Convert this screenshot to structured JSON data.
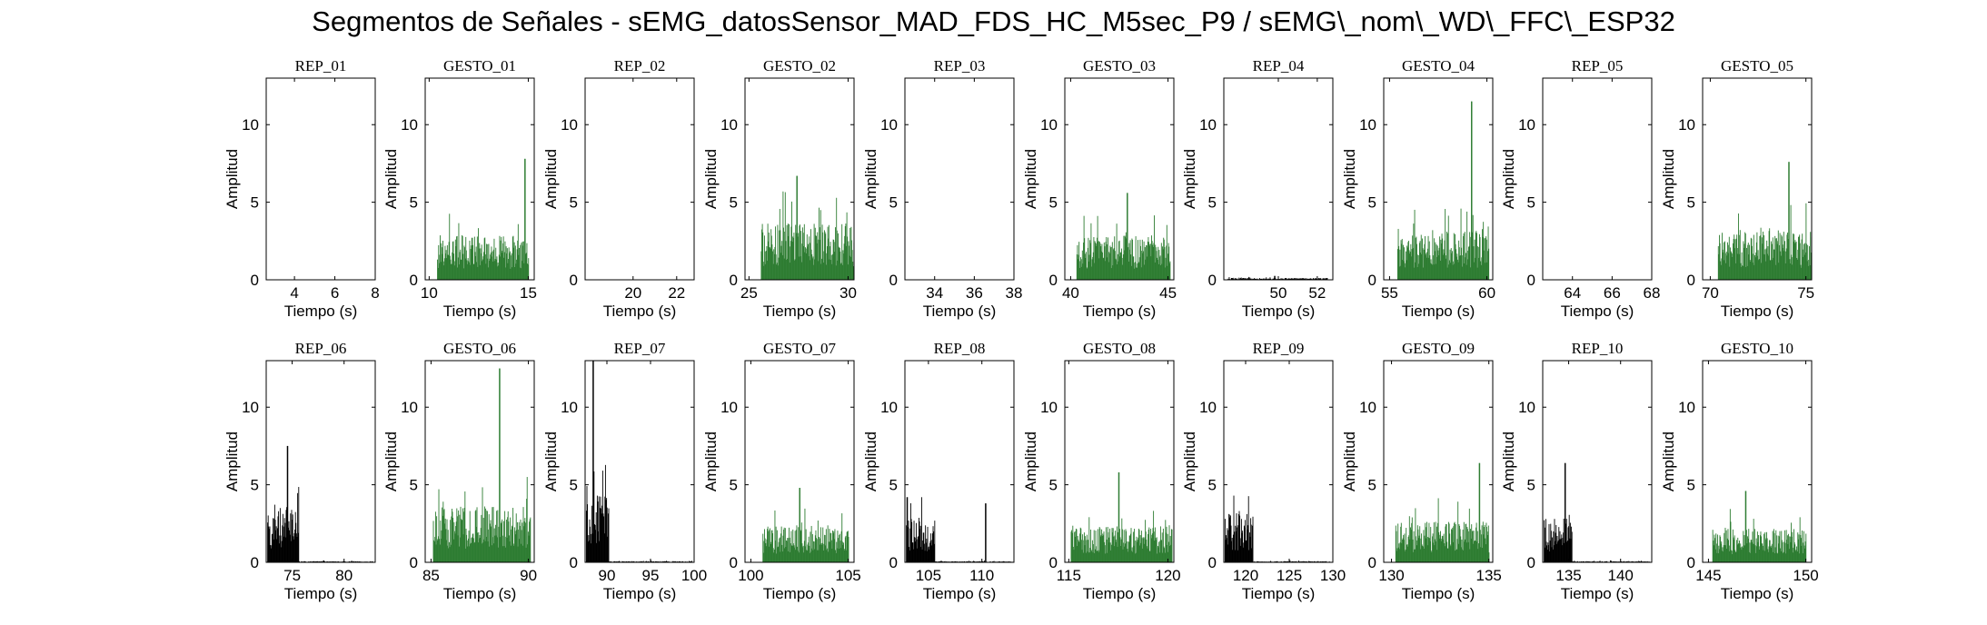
{
  "title": "Segmentos de Señales - sEMG_datosSensor_MAD_FDS_HC_M5sec_P9 / sEMG\\_nom\\_WD\\_FFC\\_ESP32",
  "colors": {
    "rep": "#000000",
    "gesto": "#2e7d32",
    "axis": "#000000"
  },
  "chart_data": [
    {
      "type": "bar",
      "title": "REP_01",
      "xlabel": "Tiempo (s)",
      "ylabel": "Amplitud",
      "xlim": [
        2.6,
        8
      ],
      "ylim": [
        0,
        13
      ],
      "xticks": [
        4,
        6,
        8
      ],
      "yticks": [
        0,
        5,
        10
      ],
      "series_kind": "rep",
      "segments": []
    },
    {
      "type": "bar",
      "title": "GESTO_01",
      "xlabel": "Tiempo (s)",
      "ylabel": "Amplitud",
      "xlim": [
        9.8,
        15.3
      ],
      "ylim": [
        0,
        13
      ],
      "xticks": [
        10,
        15
      ],
      "yticks": [
        0,
        5,
        10
      ],
      "series_kind": "gesto",
      "segments": [
        {
          "x0": 10.4,
          "x1": 15.0,
          "base": 2.0,
          "peak": 7.8,
          "peak_at": 14.8
        }
      ]
    },
    {
      "type": "bar",
      "title": "REP_02",
      "xlabel": "Tiempo (s)",
      "ylabel": "Amplitud",
      "xlim": [
        17.8,
        22.8
      ],
      "ylim": [
        0,
        13
      ],
      "xticks": [
        20,
        22
      ],
      "yticks": [
        0,
        5,
        10
      ],
      "series_kind": "rep",
      "segments": []
    },
    {
      "type": "bar",
      "title": "GESTO_02",
      "xlabel": "Tiempo (s)",
      "ylabel": "Amplitud",
      "xlim": [
        24.8,
        30.3
      ],
      "ylim": [
        0,
        13
      ],
      "xticks": [
        25,
        30
      ],
      "yticks": [
        0,
        5,
        10
      ],
      "series_kind": "gesto",
      "segments": [
        {
          "x0": 25.6,
          "x1": 30.3,
          "base": 2.5,
          "peak": 6.7,
          "peak_at": 27.4
        }
      ]
    },
    {
      "type": "bar",
      "title": "REP_03",
      "xlabel": "Tiempo (s)",
      "ylabel": "Amplitud",
      "xlim": [
        32.5,
        38
      ],
      "ylim": [
        0,
        13
      ],
      "xticks": [
        34,
        36,
        38
      ],
      "yticks": [
        0,
        5,
        10
      ],
      "series_kind": "rep",
      "segments": []
    },
    {
      "type": "bar",
      "title": "GESTO_03",
      "xlabel": "Tiempo (s)",
      "ylabel": "Amplitud",
      "xlim": [
        39.7,
        45.3
      ],
      "ylim": [
        0,
        13
      ],
      "xticks": [
        40,
        45
      ],
      "yticks": [
        0,
        5,
        10
      ],
      "series_kind": "gesto",
      "segments": [
        {
          "x0": 40.3,
          "x1": 45.1,
          "base": 2.0,
          "peak": 5.6,
          "peak_at": 42.9
        }
      ]
    },
    {
      "type": "bar",
      "title": "REP_04",
      "xlabel": "Tiempo (s)",
      "ylabel": "Amplitud",
      "xlim": [
        47.2,
        52.8
      ],
      "ylim": [
        0,
        13
      ],
      "xticks": [
        50,
        52
      ],
      "yticks": [
        0,
        5,
        10
      ],
      "series_kind": "rep",
      "segments": [
        {
          "x0": 47.4,
          "x1": 52.5,
          "base": 0.08,
          "peak": 0.25,
          "peak_at": 49.8
        }
      ]
    },
    {
      "type": "bar",
      "title": "GESTO_04",
      "xlabel": "Tiempo (s)",
      "ylabel": "Amplitud",
      "xlim": [
        54.7,
        60.3
      ],
      "ylim": [
        0,
        13
      ],
      "xticks": [
        55,
        60
      ],
      "yticks": [
        0,
        5,
        10
      ],
      "series_kind": "gesto",
      "segments": [
        {
          "x0": 55.4,
          "x1": 60.1,
          "base": 2.2,
          "peak": 11.5,
          "peak_at": 59.2
        }
      ]
    },
    {
      "type": "bar",
      "title": "REP_05",
      "xlabel": "Tiempo (s)",
      "ylabel": "Amplitud",
      "xlim": [
        62.5,
        68
      ],
      "ylim": [
        0,
        13
      ],
      "xticks": [
        64,
        66,
        68
      ],
      "yticks": [
        0,
        5,
        10
      ],
      "series_kind": "rep",
      "segments": []
    },
    {
      "type": "bar",
      "title": "GESTO_05",
      "xlabel": "Tiempo (s)",
      "ylabel": "Amplitud",
      "xlim": [
        69.6,
        75.3
      ],
      "ylim": [
        0,
        13
      ],
      "xticks": [
        70,
        75
      ],
      "yticks": [
        0,
        5,
        10
      ],
      "series_kind": "gesto",
      "segments": [
        {
          "x0": 70.4,
          "x1": 75.3,
          "base": 2.2,
          "peak": 7.6,
          "peak_at": 74.1
        }
      ]
    },
    {
      "type": "bar",
      "title": "REP_06",
      "xlabel": "Tiempo (s)",
      "ylabel": "Amplitud",
      "xlim": [
        72.5,
        83
      ],
      "ylim": [
        0,
        13
      ],
      "xticks": [
        75,
        80
      ],
      "yticks": [
        0,
        5,
        10
      ],
      "series_kind": "rep",
      "segments": [
        {
          "x0": 72.6,
          "x1": 75.6,
          "base": 2.5,
          "peak": 7.5,
          "peak_at": 74.5
        },
        {
          "x0": 75.6,
          "x1": 82.8,
          "base": 0.05,
          "peak": 0.12,
          "peak_at": 78.0
        }
      ]
    },
    {
      "type": "bar",
      "title": "GESTO_06",
      "xlabel": "Tiempo (s)",
      "ylabel": "Amplitud",
      "xlim": [
        84.7,
        90.3
      ],
      "ylim": [
        0,
        13
      ],
      "xticks": [
        85,
        90
      ],
      "yticks": [
        0,
        5,
        10
      ],
      "series_kind": "gesto",
      "segments": [
        {
          "x0": 85.1,
          "x1": 90.1,
          "base": 2.5,
          "peak": 12.5,
          "peak_at": 88.5
        }
      ]
    },
    {
      "type": "bar",
      "title": "REP_07",
      "xlabel": "Tiempo (s)",
      "ylabel": "Amplitud",
      "xlim": [
        87.5,
        100
      ],
      "ylim": [
        0,
        13
      ],
      "xticks": [
        90,
        95,
        100
      ],
      "yticks": [
        0,
        5,
        10
      ],
      "series_kind": "rep",
      "segments": [
        {
          "x0": 87.6,
          "x1": 90.2,
          "base": 3.0,
          "peak": 13.0,
          "peak_at": 88.4
        },
        {
          "x0": 90.2,
          "x1": 99.8,
          "base": 0.05,
          "peak": 0.12,
          "peak_at": 95.0
        }
      ]
    },
    {
      "type": "bar",
      "title": "GESTO_07",
      "xlabel": "Tiempo (s)",
      "ylabel": "Amplitud",
      "xlim": [
        99.7,
        105.3
      ],
      "ylim": [
        0,
        13
      ],
      "xticks": [
        100,
        105
      ],
      "yticks": [
        0,
        5,
        10
      ],
      "series_kind": "gesto",
      "segments": [
        {
          "x0": 100.6,
          "x1": 105.0,
          "base": 1.6,
          "peak": 4.8,
          "peak_at": 102.5
        }
      ]
    },
    {
      "type": "bar",
      "title": "REP_08",
      "xlabel": "Tiempo (s)",
      "ylabel": "Amplitud",
      "xlim": [
        102.8,
        113
      ],
      "ylim": [
        0,
        13
      ],
      "xticks": [
        105,
        110
      ],
      "yticks": [
        0,
        5,
        10
      ],
      "series_kind": "rep",
      "segments": [
        {
          "x0": 102.9,
          "x1": 105.6,
          "base": 2.0,
          "peak": 4.2,
          "peak_at": 103.0
        },
        {
          "x0": 105.6,
          "x1": 112.8,
          "base": 0.05,
          "peak": 3.8,
          "peak_at": 110.3
        }
      ]
    },
    {
      "type": "bar",
      "title": "GESTO_08",
      "xlabel": "Tiempo (s)",
      "ylabel": "Amplitud",
      "xlim": [
        114.8,
        120.3
      ],
      "ylim": [
        0,
        13
      ],
      "xticks": [
        115,
        120
      ],
      "yticks": [
        0,
        5,
        10
      ],
      "series_kind": "gesto",
      "segments": [
        {
          "x0": 115.1,
          "x1": 120.2,
          "base": 1.6,
          "peak": 5.8,
          "peak_at": 117.5
        }
      ]
    },
    {
      "type": "bar",
      "title": "REP_09",
      "xlabel": "Tiempo (s)",
      "ylabel": "Amplitud",
      "xlim": [
        117.5,
        130
      ],
      "ylim": [
        0,
        13
      ],
      "xticks": [
        120,
        125,
        130
      ],
      "yticks": [
        0,
        5,
        10
      ],
      "series_kind": "rep",
      "segments": [
        {
          "x0": 117.6,
          "x1": 120.8,
          "base": 2.2,
          "peak": 4.3,
          "peak_at": 118.6
        },
        {
          "x0": 120.8,
          "x1": 129.8,
          "base": 0.05,
          "peak": 0.12,
          "peak_at": 125.0
        }
      ]
    },
    {
      "type": "bar",
      "title": "GESTO_09",
      "xlabel": "Tiempo (s)",
      "ylabel": "Amplitud",
      "xlim": [
        129.6,
        135.2
      ],
      "ylim": [
        0,
        13
      ],
      "xticks": [
        130,
        135
      ],
      "yticks": [
        0,
        5,
        10
      ],
      "series_kind": "gesto",
      "segments": [
        {
          "x0": 130.2,
          "x1": 135.0,
          "base": 1.8,
          "peak": 6.4,
          "peak_at": 134.5
        }
      ]
    },
    {
      "type": "bar",
      "title": "REP_10",
      "xlabel": "Tiempo (s)",
      "ylabel": "Amplitud",
      "xlim": [
        132.5,
        143
      ],
      "ylim": [
        0,
        13
      ],
      "xticks": [
        135,
        140
      ],
      "yticks": [
        0,
        5,
        10
      ],
      "series_kind": "rep",
      "segments": [
        {
          "x0": 132.6,
          "x1": 135.3,
          "base": 2.0,
          "peak": 6.4,
          "peak_at": 134.6
        },
        {
          "x0": 135.3,
          "x1": 142.8,
          "base": 0.05,
          "peak": 0.12,
          "peak_at": 139.0
        }
      ]
    },
    {
      "type": "bar",
      "title": "GESTO_10",
      "xlabel": "Tiempo (s)",
      "ylabel": "Amplitud",
      "xlim": [
        144.7,
        150.3
      ],
      "ylim": [
        0,
        13
      ],
      "xticks": [
        145,
        150
      ],
      "yticks": [
        0,
        5,
        10
      ],
      "series_kind": "gesto",
      "segments": [
        {
          "x0": 145.2,
          "x1": 150.0,
          "base": 1.5,
          "peak": 4.6,
          "peak_at": 146.9
        }
      ]
    }
  ]
}
